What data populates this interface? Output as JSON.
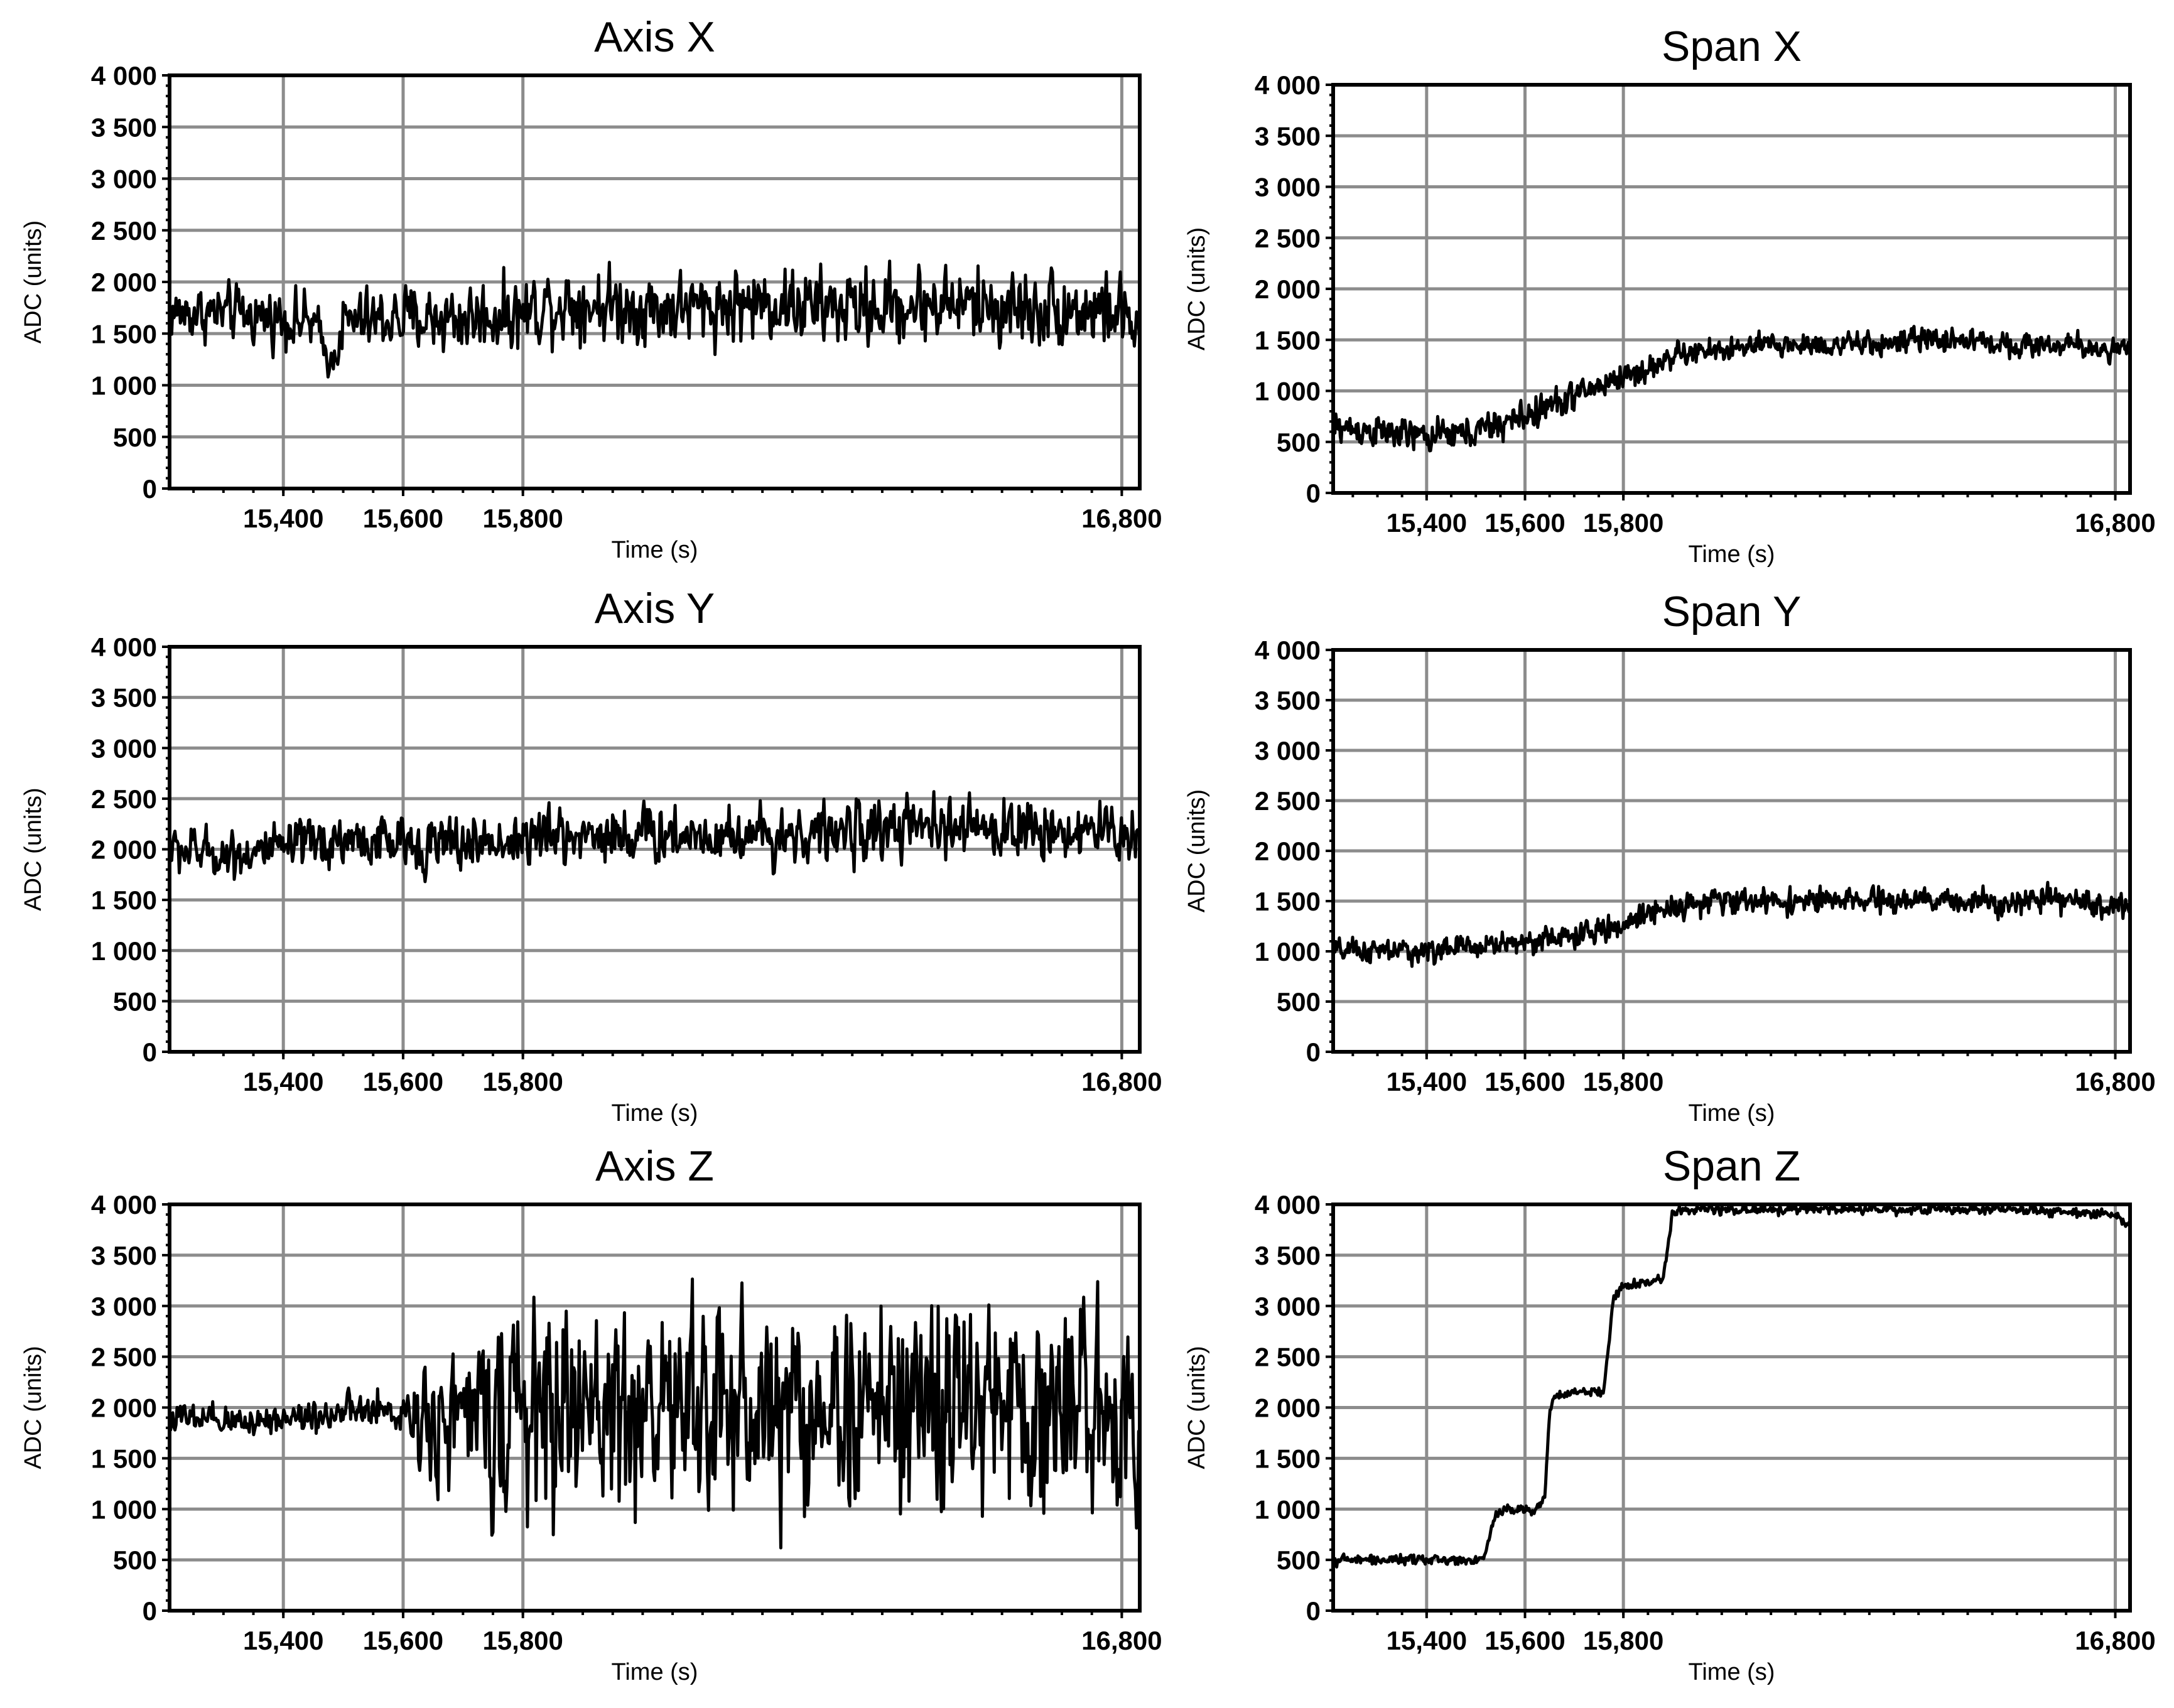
{
  "chart_data": [
    {
      "type": "line",
      "title": "Axis X",
      "xlabel": "Time (s)",
      "ylabel": "ADC (units)",
      "xlim": [
        15210,
        16830
      ],
      "ylim": [
        0,
        4000
      ],
      "xticks": [
        15400,
        15600,
        15800,
        16800
      ],
      "xtick_labels": [
        "15,400",
        "15,600",
        "15,800",
        "16,800"
      ],
      "yticks": [
        0,
        500,
        1000,
        1500,
        2000,
        2500,
        3000,
        3500,
        4000
      ],
      "ytick_labels": [
        "0",
        "500",
        "1 000",
        "1 500",
        "2 000",
        "2 500",
        "3 000",
        "3 500",
        "4 000"
      ],
      "grid": true,
      "series": [
        {
          "x": [
            15210,
            15300,
            15400,
            15450,
            15480,
            15500,
            15600,
            15700,
            15800,
            15850,
            15900,
            16000,
            16100,
            16200,
            16300,
            16400,
            16500,
            16600,
            16700,
            16800,
            16830
          ],
          "y": [
            1700,
            1700,
            1650,
            1600,
            1200,
            1600,
            1650,
            1650,
            1700,
            1800,
            1800,
            1750,
            1750,
            1800,
            1750,
            1750,
            1800,
            1750,
            1750,
            1700,
            1500
          ],
          "noise_amplitude": [
            500,
            500,
            500,
            550,
            300,
            550,
            600,
            650,
            650,
            700,
            700,
            650,
            650,
            700,
            700,
            700,
            700,
            700,
            700,
            650,
            600
          ]
        }
      ]
    },
    {
      "type": "line",
      "title": "Span X",
      "xlabel": "Time (s)",
      "ylabel": "ADC (units)",
      "xlim": [
        15210,
        16830
      ],
      "ylim": [
        0,
        4000
      ],
      "xticks": [
        15400,
        15600,
        15800,
        16800
      ],
      "xtick_labels": [
        "15,400",
        "15,600",
        "15,800",
        "16,800"
      ],
      "yticks": [
        0,
        500,
        1000,
        1500,
        2000,
        2500,
        3000,
        3500,
        4000
      ],
      "ytick_labels": [
        "0",
        "500",
        "1 000",
        "1 500",
        "2 000",
        "2 500",
        "3 000",
        "3 500",
        "4 000"
      ],
      "grid": true,
      "series": [
        {
          "x": [
            15210,
            15300,
            15400,
            15500,
            15600,
            15700,
            15800,
            15850,
            15900,
            16000,
            16100,
            16200,
            16300,
            16400,
            16500,
            16600,
            16700,
            16800,
            16830
          ],
          "y": [
            650,
            600,
            550,
            600,
            750,
            950,
            1150,
            1200,
            1350,
            1400,
            1450,
            1450,
            1450,
            1500,
            1500,
            1450,
            1450,
            1400,
            1400
          ],
          "noise_amplitude": [
            300,
            280,
            280,
            300,
            300,
            280,
            250,
            250,
            230,
            220,
            220,
            220,
            220,
            220,
            220,
            220,
            220,
            220,
            220
          ]
        }
      ]
    },
    {
      "type": "line",
      "title": "Axis Y",
      "xlabel": "Time (s)",
      "ylabel": "ADC (units)",
      "xlim": [
        15210,
        16830
      ],
      "ylim": [
        0,
        4000
      ],
      "xticks": [
        15400,
        15600,
        15800,
        16800
      ],
      "xtick_labels": [
        "15,400",
        "15,600",
        "15,800",
        "16,800"
      ],
      "yticks": [
        0,
        500,
        1000,
        1500,
        2000,
        2500,
        3000,
        3500,
        4000
      ],
      "ytick_labels": [
        "0",
        "500",
        "1 000",
        "1 500",
        "2 000",
        "2 500",
        "3 000",
        "3 500",
        "4 000"
      ],
      "grid": true,
      "series": [
        {
          "x": [
            15210,
            15300,
            15400,
            15500,
            15600,
            15700,
            15800,
            15900,
            16000,
            16100,
            16200,
            16300,
            16400,
            16500,
            16600,
            16700,
            16800,
            16830
          ],
          "y": [
            2000,
            1950,
            2000,
            2100,
            2050,
            2050,
            2100,
            2150,
            2150,
            2150,
            2150,
            2150,
            2200,
            2200,
            2200,
            2200,
            2150,
            2150
          ],
          "noise_amplitude": [
            450,
            450,
            450,
            500,
            500,
            500,
            550,
            550,
            550,
            550,
            550,
            550,
            550,
            550,
            550,
            550,
            550,
            550
          ]
        }
      ]
    },
    {
      "type": "line",
      "title": "Span Y",
      "xlabel": "Time (s)",
      "ylabel": "ADC (units)",
      "xlim": [
        15210,
        16830
      ],
      "ylim": [
        0,
        4000
      ],
      "xticks": [
        15400,
        15600,
        15800,
        16800
      ],
      "xtick_labels": [
        "15,400",
        "15,600",
        "15,800",
        "16,800"
      ],
      "yticks": [
        0,
        500,
        1000,
        1500,
        2000,
        2500,
        3000,
        3500,
        4000
      ],
      "ytick_labels": [
        "0",
        "500",
        "1 000",
        "1 500",
        "2 000",
        "2 500",
        "3 000",
        "3 500",
        "4 000"
      ],
      "grid": true,
      "series": [
        {
          "x": [
            15210,
            15300,
            15400,
            15500,
            15600,
            15700,
            15800,
            15850,
            15900,
            16000,
            16100,
            16200,
            16300,
            16400,
            16500,
            16600,
            16700,
            16800,
            16830
          ],
          "y": [
            1000,
            1000,
            1000,
            1050,
            1100,
            1150,
            1250,
            1400,
            1450,
            1500,
            1500,
            1500,
            1500,
            1500,
            1500,
            1500,
            1500,
            1450,
            1450
          ],
          "noise_amplitude": [
            220,
            220,
            220,
            230,
            230,
            230,
            230,
            230,
            230,
            230,
            230,
            230,
            230,
            230,
            230,
            230,
            230,
            230,
            230
          ]
        }
      ]
    },
    {
      "type": "line",
      "title": "Axis Z",
      "xlabel": "Time (s)",
      "ylabel": "ADC (units)",
      "xlim": [
        15210,
        16830
      ],
      "ylim": [
        0,
        4000
      ],
      "xticks": [
        15400,
        15600,
        15800,
        16800
      ],
      "xtick_labels": [
        "15,400",
        "15,600",
        "15,800",
        "16,800"
      ],
      "yticks": [
        0,
        500,
        1000,
        1500,
        2000,
        2500,
        3000,
        3500,
        4000
      ],
      "ytick_labels": [
        "0",
        "500",
        "1 000",
        "1 500",
        "2 000",
        "2 500",
        "3 000",
        "3 500",
        "4 000"
      ],
      "grid": true,
      "series": [
        {
          "x": [
            15210,
            15300,
            15400,
            15500,
            15600,
            15650,
            15700,
            15760,
            15800,
            15880,
            15900,
            16000,
            16100,
            16200,
            16300,
            16400,
            16500,
            16600,
            16700,
            16800,
            16830
          ],
          "y": [
            1900,
            1850,
            1900,
            1950,
            1950,
            1900,
            1900,
            1950,
            1950,
            1950,
            2000,
            2000,
            2000,
            2000,
            2000,
            2000,
            2000,
            2000,
            2000,
            2000,
            2000
          ],
          "noise_amplitude": [
            300,
            300,
            300,
            350,
            400,
            1200,
            1300,
            1700,
            1800,
            1900,
            2000,
            2000,
            2000,
            2000,
            2000,
            2000,
            2000,
            2000,
            2000,
            2000,
            2000
          ]
        }
      ]
    },
    {
      "type": "line",
      "title": "Span Z",
      "xlabel": "Time (s)",
      "ylabel": "ADC (units)",
      "xlim": [
        15210,
        16830
      ],
      "ylim": [
        0,
        4000
      ],
      "xticks": [
        15400,
        15600,
        15800,
        16800
      ],
      "xtick_labels": [
        "15,400",
        "15,600",
        "15,800",
        "16,800"
      ],
      "yticks": [
        0,
        500,
        1000,
        1500,
        2000,
        2500,
        3000,
        3500,
        4000
      ],
      "ytick_labels": [
        "0",
        "500",
        "1 000",
        "1 500",
        "2 000",
        "2 500",
        "3 000",
        "3 500",
        "4 000"
      ],
      "grid": true,
      "series": [
        {
          "x": [
            15210,
            15300,
            15400,
            15500,
            15520,
            15540,
            15560,
            15620,
            15640,
            15650,
            15660,
            15700,
            15760,
            15780,
            15800,
            15880,
            15900,
            16000,
            16200,
            16400,
            16600,
            16800,
            16830
          ],
          "y": [
            500,
            500,
            500,
            500,
            550,
            950,
            1000,
            1000,
            1100,
            1950,
            2100,
            2150,
            2150,
            3100,
            3200,
            3250,
            3950,
            3950,
            3950,
            3950,
            3950,
            3900,
            3800
          ],
          "noise_amplitude": [
            90,
            90,
            90,
            90,
            90,
            90,
            90,
            90,
            90,
            90,
            90,
            90,
            90,
            90,
            90,
            90,
            90,
            90,
            90,
            90,
            90,
            90,
            90
          ]
        }
      ]
    }
  ]
}
